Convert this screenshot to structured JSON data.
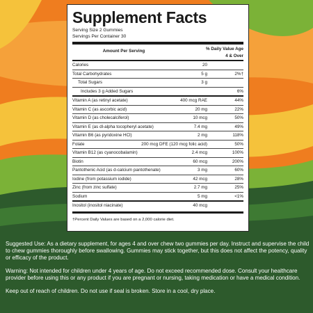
{
  "colors": {
    "orange": "#ef7d1f",
    "green_light": "#7bb237",
    "green_dark": "#2d5a2c",
    "yellow": "#f5c23b",
    "label_bg": "#ffffff",
    "text_dark": "#1a1a1a"
  },
  "label": {
    "title": "Supplement Facts",
    "serving_size": "Serving Size 2 Gummies",
    "servings_per_container": "Servings Per Container 30",
    "header_amount": "Amount Per Serving",
    "header_dv_line1": "% Daily Value Age",
    "header_dv_line2": "4 & Over",
    "rows": [
      {
        "name": "Calories",
        "amount": "20",
        "dv": ""
      },
      {
        "name": "Total Carbohydrates",
        "amount": "5 g",
        "dv": "2%†"
      },
      {
        "name": "Total Sugars",
        "amount": "3 g",
        "dv": ""
      },
      {
        "name": "Includes 3 g Added Sugars",
        "amount": "",
        "dv": "6%"
      },
      {
        "name": "Vitamin A (as retinyl acetate)",
        "amount": "400 mcg RAE",
        "dv": "44%"
      },
      {
        "name": "Vitamin C (as ascorbic acid)",
        "amount": "20 mg",
        "dv": "22%"
      },
      {
        "name": "Vitamin D (as cholecalciferol)",
        "amount": "10 mcg",
        "dv": "50%"
      },
      {
        "name": "Vitamin E (as dl-alpha tocopheryl acetate)",
        "amount": "7.4 mg",
        "dv": "49%"
      },
      {
        "name": "Vitamin B6 (as pyridoxine HCl)",
        "amount": "2 mg",
        "dv": "118%"
      },
      {
        "name": "Folate",
        "amount": "200 mcg DFE (120 mcg folic acid)",
        "dv": "50%"
      },
      {
        "name": "Vitamin B12 (as cyanocobalamin)",
        "amount": "2.4 mcg",
        "dv": "100%"
      },
      {
        "name": "Biotin",
        "amount": "60 mcg",
        "dv": "200%"
      },
      {
        "name": "Pantothenic Acid (as d-calcium pantothenate)",
        "amount": "3 mg",
        "dv": "60%"
      },
      {
        "name": "Iodine (from potassium iodide)",
        "amount": "42 mcg",
        "dv": "28%"
      },
      {
        "name": "Zinc (from zinc sulfate)",
        "amount": "2.7 mg",
        "dv": "25%"
      },
      {
        "name": "Sodium",
        "amount": "5 mg",
        "dv": "<1%"
      },
      {
        "name": "Inositol (inositol niacinate)",
        "amount": "40 mcg",
        "dv": ""
      }
    ],
    "footnote": "†Percent Daily Values are based on a 2,000 calorie diet."
  },
  "copy": {
    "suggested_use": "Suggested Use: As a dietary supplement, for ages 4 and over chew two gummies per day. Instruct and supervise the child to chew gummies thoroughly before swallowing. Gummies may stick together, but this does not affect the potency, quality or efficacy of the product.",
    "warning": "Warning: Not intended for children under 4 years of age. Do not exceed recommended dose. Consult your healthcare provider before using this or any product if you are pregnant or nursing, taking medication or have a medical condition.",
    "storage": "Keep out of reach of children. Do not use if seal is broken. Store in a cool, dry place."
  }
}
